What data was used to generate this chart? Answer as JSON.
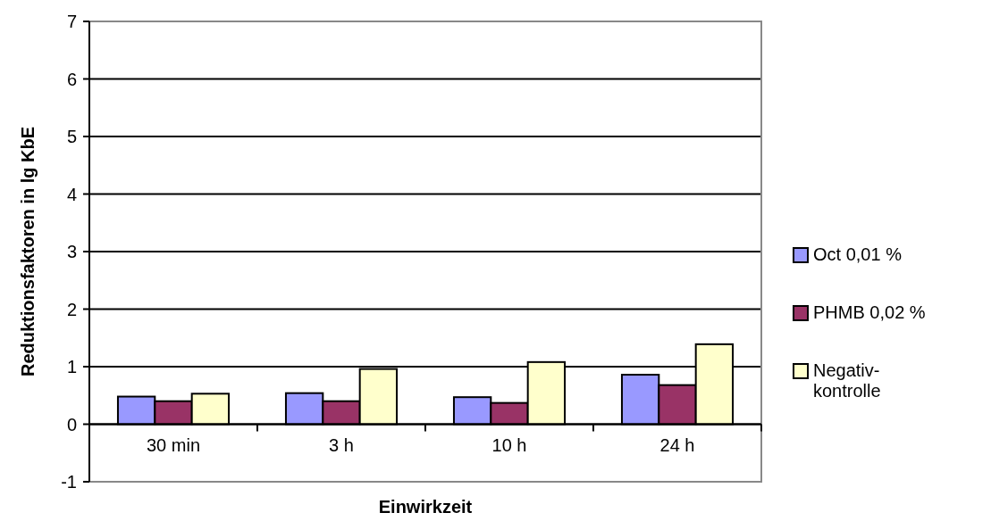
{
  "chart_data": {
    "type": "bar",
    "xlabel": "Einwirkzeit",
    "ylabel": "Reduktionsfaktoren in lg KbE",
    "categories": [
      "30 min",
      "3 h",
      "10 h",
      "24 h"
    ],
    "series": [
      {
        "name": "Oct 0,01 %",
        "color": "#9999ff",
        "values": [
          0.48,
          0.54,
          0.47,
          0.86
        ]
      },
      {
        "name": "PHMB 0,02 %",
        "color": "#993366",
        "values": [
          0.4,
          0.4,
          0.37,
          0.68
        ]
      },
      {
        "name": "Negativ-\nkontrolle",
        "color": "#ffffcc",
        "values": [
          0.53,
          0.96,
          1.08,
          1.39
        ]
      }
    ],
    "ylim": [
      -1,
      7
    ],
    "yticks": [
      -1,
      0,
      1,
      2,
      3,
      4,
      5,
      6,
      7
    ],
    "grid": "y",
    "legend": "right"
  }
}
